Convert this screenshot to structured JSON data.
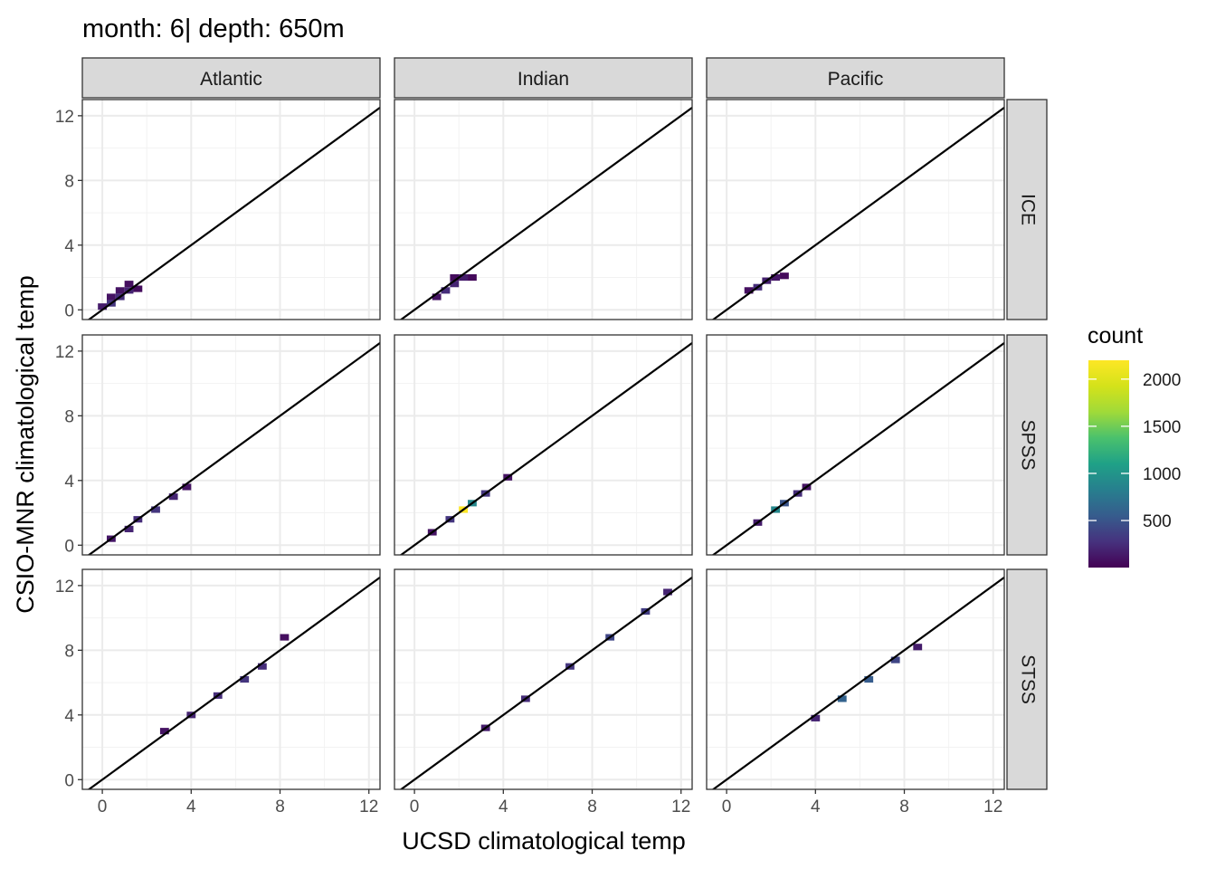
{
  "chart_data": {
    "type": "heatmap",
    "subtype": "faceted 2D histogram (bin2d) with identity line",
    "title": "month: 6| depth: 650m",
    "xlabel": "UCSD climatological temp",
    "ylabel": "CSIO-MNR climatological temp",
    "facet_columns": [
      "Atlantic",
      "Indian",
      "Pacific"
    ],
    "facet_rows": [
      "ICE",
      "SPSS",
      "STSS"
    ],
    "xlim": [
      -0.9,
      12.5
    ],
    "ylim": [
      -0.6,
      13.0
    ],
    "x_ticks": [
      "0",
      "4",
      "8",
      "12"
    ],
    "y_ticks": [
      "0",
      "4",
      "8",
      "12"
    ],
    "x_tick_values": [
      0,
      4,
      8,
      12
    ],
    "y_tick_values": [
      0,
      4,
      8,
      12
    ],
    "reference_line": {
      "slope": 1,
      "intercept": 0,
      "color": "#000000"
    },
    "grid": true,
    "legend": {
      "title": "count",
      "placement": "right",
      "labels": [
        "2000",
        "1500",
        "1000",
        "500"
      ],
      "label_values": [
        2000,
        1500,
        1000,
        500
      ],
      "range": [
        1,
        2200
      ],
      "palette": "viridis"
    },
    "bin_width": 0.4,
    "panels": [
      {
        "col": "Atlantic",
        "row": "ICE",
        "cells": [
          {
            "x": 0.0,
            "y": 0.2,
            "count": 150
          },
          {
            "x": 0.4,
            "y": 0.4,
            "count": 300
          },
          {
            "x": 0.4,
            "y": 0.8,
            "count": 100
          },
          {
            "x": 0.8,
            "y": 0.8,
            "count": 250
          },
          {
            "x": 0.8,
            "y": 1.2,
            "count": 100
          },
          {
            "x": 1.2,
            "y": 1.2,
            "count": 200
          },
          {
            "x": 1.2,
            "y": 1.6,
            "count": 80
          },
          {
            "x": 1.6,
            "y": 1.3,
            "count": 60
          }
        ]
      },
      {
        "col": "Indian",
        "row": "ICE",
        "cells": [
          {
            "x": 1.0,
            "y": 0.8,
            "count": 100
          },
          {
            "x": 1.4,
            "y": 1.2,
            "count": 250
          },
          {
            "x": 1.8,
            "y": 1.6,
            "count": 200
          },
          {
            "x": 2.2,
            "y": 2.0,
            "count": 150
          },
          {
            "x": 1.8,
            "y": 2.0,
            "count": 60
          },
          {
            "x": 2.6,
            "y": 2.0,
            "count": 50
          }
        ]
      },
      {
        "col": "Pacific",
        "row": "ICE",
        "cells": [
          {
            "x": 1.0,
            "y": 1.2,
            "count": 80
          },
          {
            "x": 1.4,
            "y": 1.4,
            "count": 250
          },
          {
            "x": 1.8,
            "y": 1.8,
            "count": 180
          },
          {
            "x": 2.2,
            "y": 2.0,
            "count": 120
          },
          {
            "x": 2.6,
            "y": 2.1,
            "count": 50
          }
        ]
      },
      {
        "col": "Atlantic",
        "row": "SPSS",
        "cells": [
          {
            "x": 0.4,
            "y": 0.4,
            "count": 120
          },
          {
            "x": 1.2,
            "y": 1.0,
            "count": 200
          },
          {
            "x": 1.6,
            "y": 1.6,
            "count": 250
          },
          {
            "x": 2.4,
            "y": 2.2,
            "count": 300
          },
          {
            "x": 3.2,
            "y": 3.0,
            "count": 200
          },
          {
            "x": 3.8,
            "y": 3.6,
            "count": 100
          }
        ]
      },
      {
        "col": "Indian",
        "row": "SPSS",
        "cells": [
          {
            "x": 0.8,
            "y": 0.8,
            "count": 100
          },
          {
            "x": 1.6,
            "y": 1.6,
            "count": 300
          },
          {
            "x": 2.2,
            "y": 2.2,
            "count": 2200
          },
          {
            "x": 2.6,
            "y": 2.6,
            "count": 900
          },
          {
            "x": 3.2,
            "y": 3.2,
            "count": 300
          },
          {
            "x": 4.2,
            "y": 4.2,
            "count": 100
          }
        ]
      },
      {
        "col": "Pacific",
        "row": "SPSS",
        "cells": [
          {
            "x": 1.4,
            "y": 1.4,
            "count": 150
          },
          {
            "x": 2.2,
            "y": 2.2,
            "count": 900
          },
          {
            "x": 2.6,
            "y": 2.6,
            "count": 500
          },
          {
            "x": 3.2,
            "y": 3.2,
            "count": 250
          },
          {
            "x": 3.6,
            "y": 3.6,
            "count": 100
          }
        ]
      },
      {
        "col": "Atlantic",
        "row": "STSS",
        "cells": [
          {
            "x": 2.8,
            "y": 3.0,
            "count": 100
          },
          {
            "x": 4.0,
            "y": 4.0,
            "count": 200
          },
          {
            "x": 5.2,
            "y": 5.2,
            "count": 250
          },
          {
            "x": 6.4,
            "y": 6.2,
            "count": 300
          },
          {
            "x": 7.2,
            "y": 7.0,
            "count": 250
          },
          {
            "x": 8.2,
            "y": 8.8,
            "count": 80
          }
        ]
      },
      {
        "col": "Indian",
        "row": "STSS",
        "cells": [
          {
            "x": 3.2,
            "y": 3.2,
            "count": 150
          },
          {
            "x": 5.0,
            "y": 5.0,
            "count": 250
          },
          {
            "x": 7.0,
            "y": 7.0,
            "count": 300
          },
          {
            "x": 8.8,
            "y": 8.8,
            "count": 400
          },
          {
            "x": 10.4,
            "y": 10.4,
            "count": 350
          },
          {
            "x": 11.4,
            "y": 11.6,
            "count": 200
          }
        ]
      },
      {
        "col": "Pacific",
        "row": "STSS",
        "cells": [
          {
            "x": 4.0,
            "y": 3.8,
            "count": 200
          },
          {
            "x": 5.2,
            "y": 5.0,
            "count": 600
          },
          {
            "x": 6.4,
            "y": 6.2,
            "count": 550
          },
          {
            "x": 7.6,
            "y": 7.4,
            "count": 400
          },
          {
            "x": 8.6,
            "y": 8.2,
            "count": 150
          }
        ]
      }
    ]
  }
}
